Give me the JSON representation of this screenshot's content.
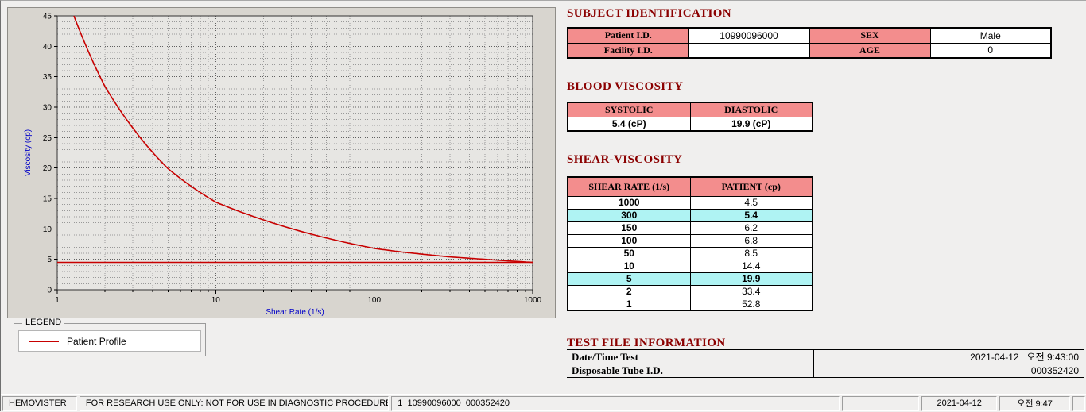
{
  "colors": {
    "section_header": "#8b0000",
    "table_header_bg": "#f38d8d",
    "highlight_bg": "#aff3f3",
    "curve": "#c80000",
    "axis_title": "#0000c8"
  },
  "chart_data": {
    "type": "line",
    "title": "",
    "xlabel": "Shear Rate (1/s)",
    "ylabel": "Viscosity (cp)",
    "x_scale": "log",
    "xlim": [
      1,
      1000
    ],
    "ylim": [
      0,
      45
    ],
    "x_ticks": [
      1,
      10,
      100,
      1000
    ],
    "y_ticks": [
      0,
      5,
      10,
      15,
      20,
      25,
      30,
      35,
      40,
      45
    ],
    "grid": true,
    "legend_position": "below-left",
    "series": [
      {
        "name": "Patient Profile",
        "color": "#c80000",
        "x": [
          1,
          2,
          5,
          10,
          50,
          100,
          150,
          300,
          1000
        ],
        "y": [
          52.8,
          33.4,
          19.9,
          14.4,
          8.5,
          6.8,
          6.2,
          5.4,
          4.5
        ]
      }
    ],
    "reference_line": {
      "y": 4.5,
      "color": "#c80000"
    }
  },
  "legend": {
    "title": "LEGEND",
    "items": [
      {
        "label": "Patient Profile",
        "color": "#c80000"
      }
    ]
  },
  "subject": {
    "title": "SUBJECT IDENTIFICATION",
    "rows": [
      {
        "label1": "Patient I.D.",
        "value1": "10990096000",
        "label2": "SEX",
        "value2": "Male"
      },
      {
        "label1": "Facility I.D.",
        "value1": "",
        "label2": "AGE",
        "value2": "0"
      }
    ]
  },
  "blood_viscosity": {
    "title": "BLOOD VISCOSITY",
    "headers": [
      "SYSTOLIC",
      "DIASTOLIC"
    ],
    "values": [
      "5.4 (cP)",
      "19.9 (cP)"
    ]
  },
  "shear_viscosity": {
    "title": "SHEAR-VISCOSITY",
    "headers": [
      "SHEAR RATE (1/s)",
      "PATIENT (cp)"
    ],
    "rows": [
      {
        "rate": "1000",
        "value": "4.5",
        "highlight": false
      },
      {
        "rate": "300",
        "value": "5.4",
        "highlight": true
      },
      {
        "rate": "150",
        "value": "6.2",
        "highlight": false
      },
      {
        "rate": "100",
        "value": "6.8",
        "highlight": false
      },
      {
        "rate": "50",
        "value": "8.5",
        "highlight": false
      },
      {
        "rate": "10",
        "value": "14.4",
        "highlight": false
      },
      {
        "rate": "5",
        "value": "19.9",
        "highlight": true
      },
      {
        "rate": "2",
        "value": "33.4",
        "highlight": false
      },
      {
        "rate": "1",
        "value": "52.8",
        "highlight": false
      }
    ]
  },
  "test_file": {
    "title": "TEST FILE INFORMATION",
    "rows": [
      {
        "label": "Date/Time Test",
        "value": "2021-04-12   오전 9:43:00"
      },
      {
        "label": "Disposable Tube I.D.",
        "value": "000352420"
      }
    ]
  },
  "status_bar": {
    "app_name": "HEMOVISTER",
    "notice": "FOR RESEARCH USE ONLY: NOT FOR USE IN DIAGNOSTIC PROCEDURES",
    "record": "1  10990096000  000352420",
    "date": "2021-04-12",
    "time": "오전 9:47"
  }
}
